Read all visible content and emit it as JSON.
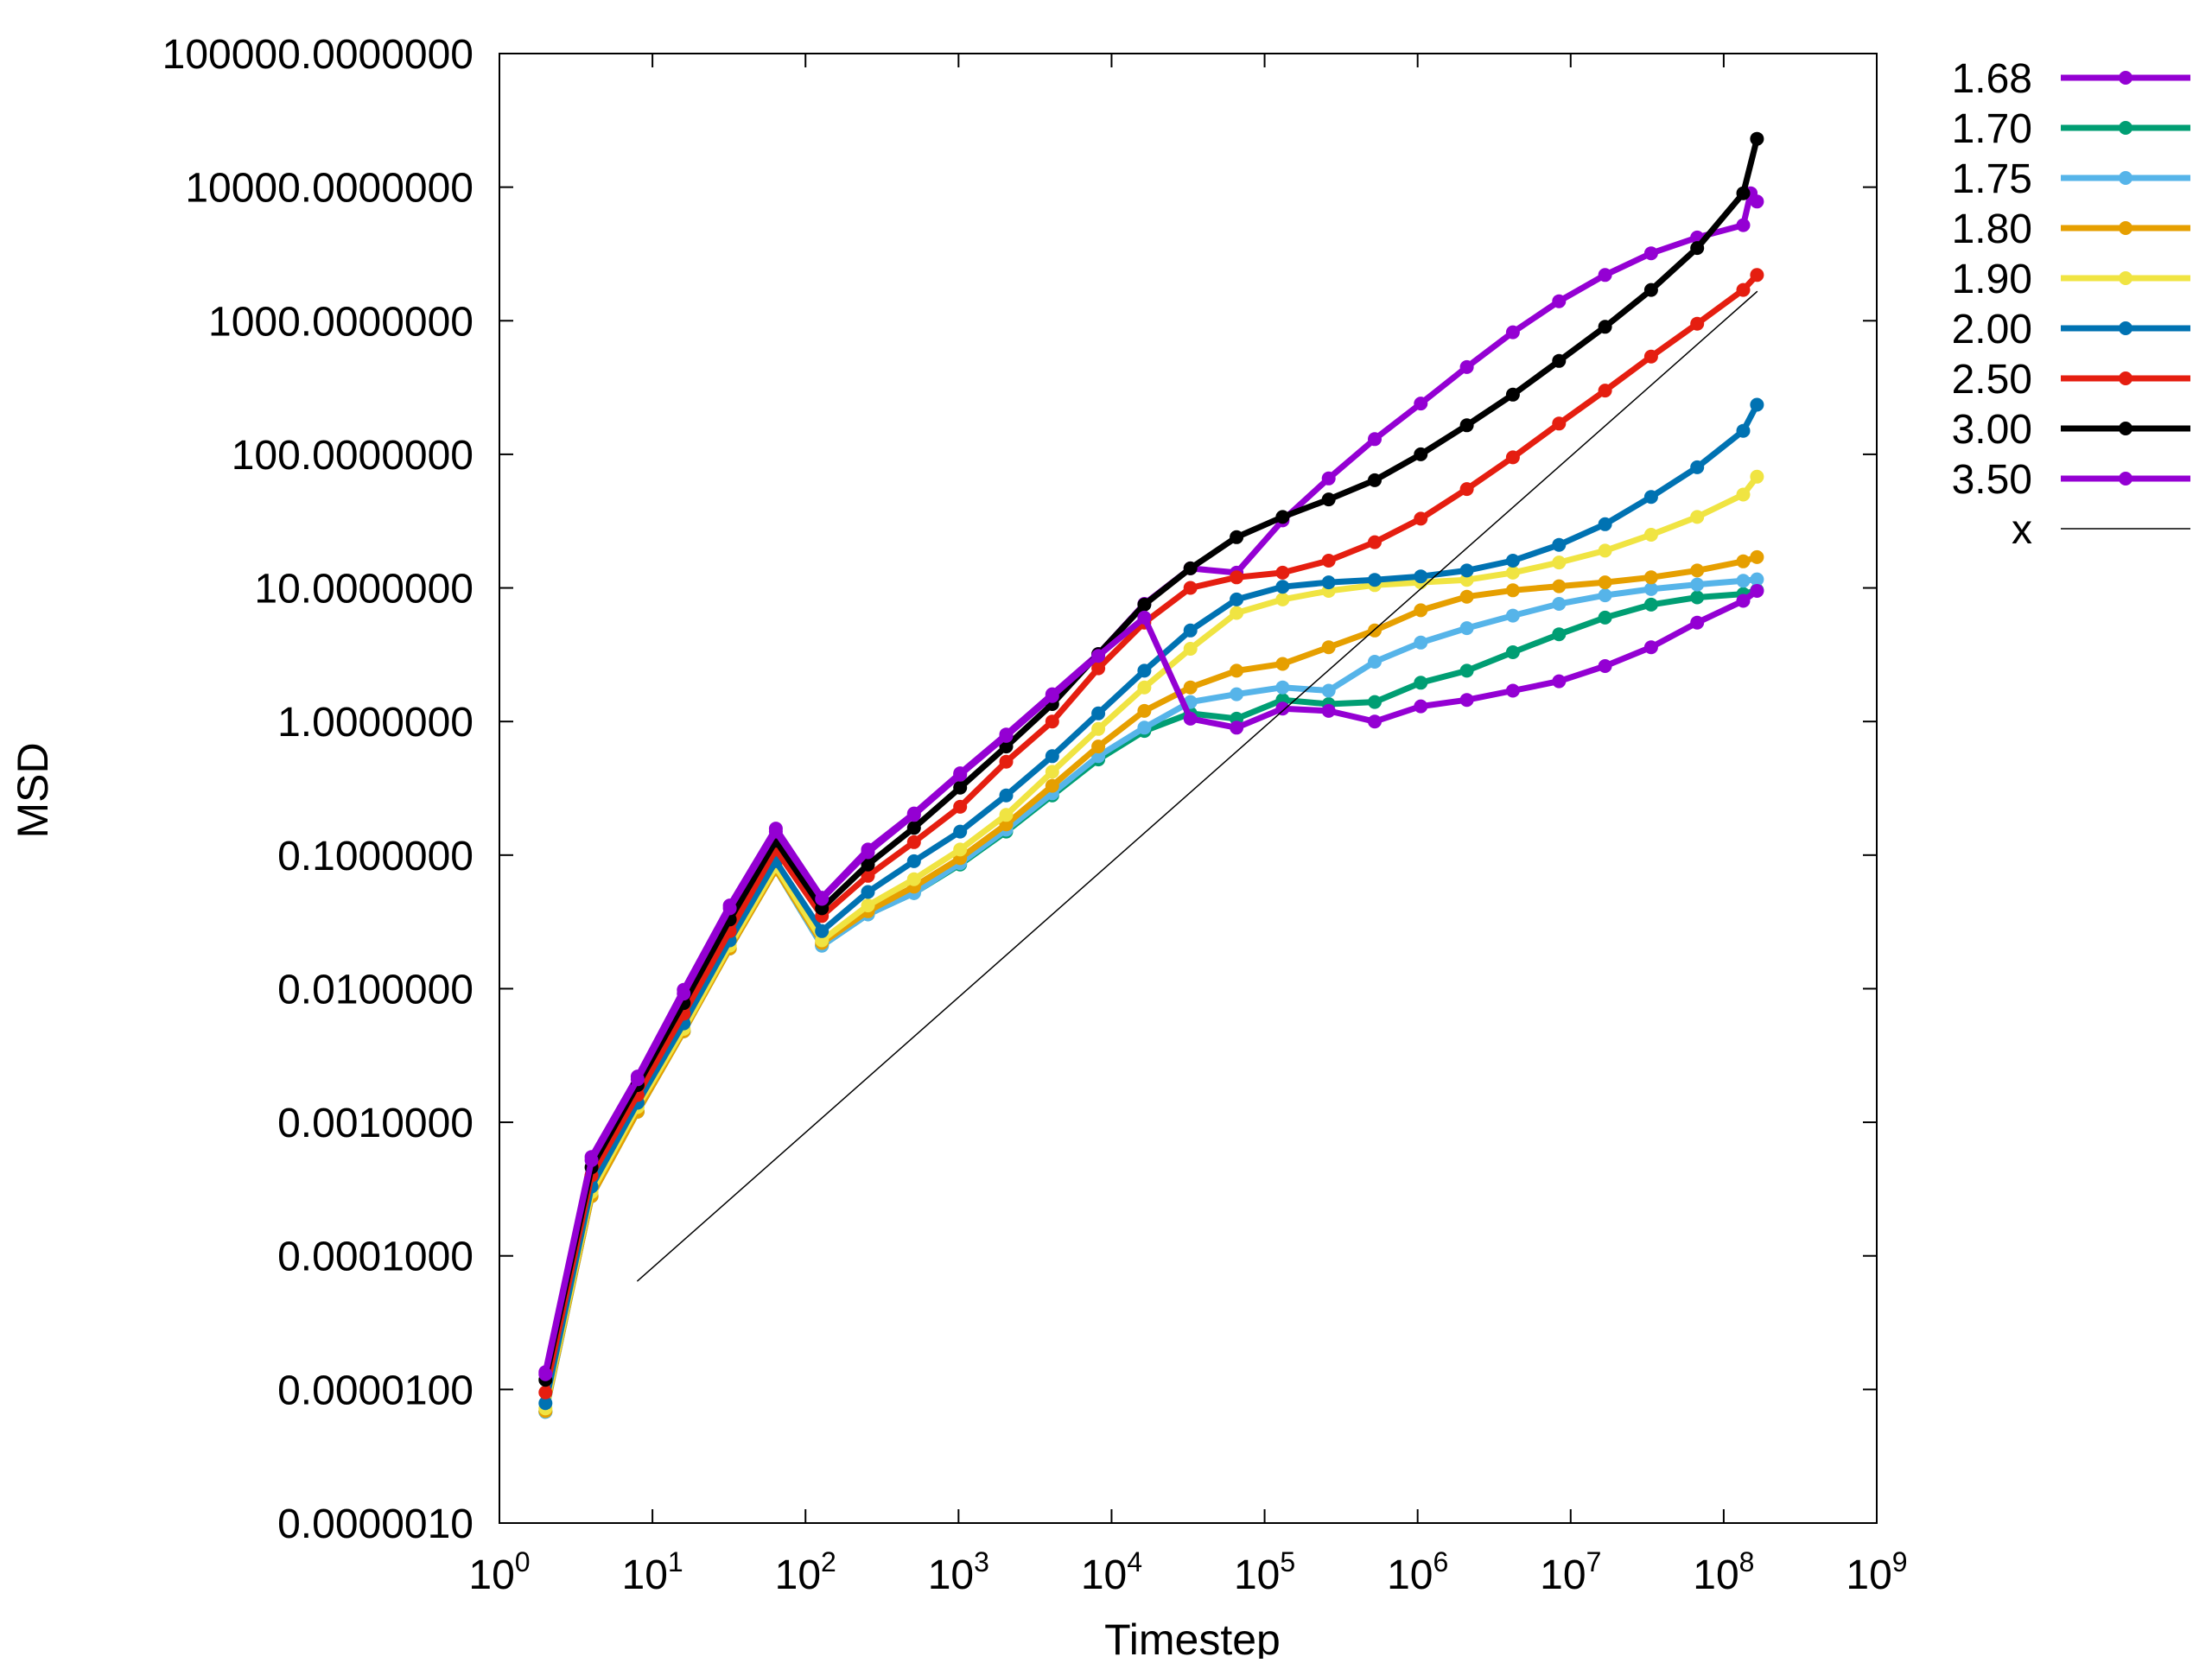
{
  "chart_data": {
    "type": "line",
    "xlabel": "Timestep",
    "ylabel": "MSD",
    "x_scale": "log",
    "y_scale": "log",
    "xlim": [
      1,
      1000000000
    ],
    "ylim": [
      1e-06,
      100000
    ],
    "grid": false,
    "legend_position": "outside-right",
    "x_tick_labels": [
      {
        "base": "10",
        "exp": "0"
      },
      {
        "base": "10",
        "exp": "1"
      },
      {
        "base": "10",
        "exp": "2"
      },
      {
        "base": "10",
        "exp": "3"
      },
      {
        "base": "10",
        "exp": "4"
      },
      {
        "base": "10",
        "exp": "5"
      },
      {
        "base": "10",
        "exp": "6"
      },
      {
        "base": "10",
        "exp": "7"
      },
      {
        "base": "10",
        "exp": "8"
      },
      {
        "base": "10",
        "exp": "9"
      }
    ],
    "y_tick_labels": [
      "0.0000010",
      "0.0000100",
      "0.0001000",
      "0.0010000",
      "0.0100000",
      "0.1000000",
      "1.0000000",
      "10.0000000",
      "100.0000000",
      "1000.0000000",
      "10000.0000000",
      "100000.0000000"
    ],
    "series": [
      {
        "name": "1.68",
        "color": "#9400d3",
        "points": [
          [
            2,
            1.35e-05
          ],
          [
            4,
            0.00055
          ],
          [
            8,
            0.0022
          ],
          [
            16,
            0.0098
          ],
          [
            32,
            0.042
          ],
          [
            64,
            0.158
          ],
          [
            128,
            0.048
          ],
          [
            256,
            0.11
          ],
          [
            512,
            0.205
          ],
          [
            1024,
            0.41
          ],
          [
            2048,
            0.8
          ],
          [
            4096,
            1.6
          ],
          [
            8192,
            3.2
          ],
          [
            16384,
            7.6
          ],
          [
            32768,
            14
          ],
          [
            65536,
            13
          ],
          [
            131072,
            32
          ],
          [
            262144,
            66
          ],
          [
            524288,
            130
          ],
          [
            1048576,
            240
          ],
          [
            2097152,
            450
          ],
          [
            4194304,
            820
          ],
          [
            8388608,
            1400
          ],
          [
            16777216,
            2200
          ],
          [
            33554432,
            3200
          ],
          [
            67108864,
            4200
          ],
          [
            134217728,
            5200
          ],
          [
            150000000,
            9000
          ],
          [
            165000000,
            7800
          ]
        ]
      },
      {
        "name": "1.70",
        "color": "#009e73",
        "points": [
          [
            2,
            6.8e-06
          ],
          [
            4,
            0.00028
          ],
          [
            8,
            0.0012
          ],
          [
            16,
            0.0048
          ],
          [
            32,
            0.02
          ],
          [
            64,
            0.078
          ],
          [
            128,
            0.021
          ],
          [
            256,
            0.036
          ],
          [
            512,
            0.052
          ],
          [
            1024,
            0.085
          ],
          [
            2048,
            0.15
          ],
          [
            4096,
            0.28
          ],
          [
            8192,
            0.52
          ],
          [
            16384,
            0.85
          ],
          [
            32768,
            1.15
          ],
          [
            65536,
            1.05
          ],
          [
            131072,
            1.45
          ],
          [
            262144,
            1.35
          ],
          [
            524288,
            1.4
          ],
          [
            1048576,
            1.95
          ],
          [
            2097152,
            2.4
          ],
          [
            4194304,
            3.3
          ],
          [
            8388608,
            4.5
          ],
          [
            16777216,
            6
          ],
          [
            33554432,
            7.5
          ],
          [
            67108864,
            8.5
          ],
          [
            134217728,
            9
          ],
          [
            165000000,
            9.6
          ]
        ]
      },
      {
        "name": "1.75",
        "color": "#56b4e9",
        "points": [
          [
            2,
            6.8e-06
          ],
          [
            4,
            0.00028
          ],
          [
            8,
            0.0012
          ],
          [
            16,
            0.0048
          ],
          [
            32,
            0.02
          ],
          [
            64,
            0.078
          ],
          [
            128,
            0.021
          ],
          [
            256,
            0.036
          ],
          [
            512,
            0.052
          ],
          [
            1024,
            0.087
          ],
          [
            2048,
            0.155
          ],
          [
            4096,
            0.29
          ],
          [
            8192,
            0.55
          ],
          [
            16384,
            0.9
          ],
          [
            32768,
            1.4
          ],
          [
            65536,
            1.6
          ],
          [
            131072,
            1.8
          ],
          [
            262144,
            1.7
          ],
          [
            524288,
            2.8
          ],
          [
            1048576,
            3.9
          ],
          [
            2097152,
            5
          ],
          [
            4194304,
            6.2
          ],
          [
            8388608,
            7.6
          ],
          [
            16777216,
            8.8
          ],
          [
            33554432,
            9.8
          ],
          [
            67108864,
            10.6
          ],
          [
            134217728,
            11.3
          ],
          [
            165000000,
            11.6
          ]
        ]
      },
      {
        "name": "1.80",
        "color": "#e69f00",
        "points": [
          [
            2,
            6.9e-06
          ],
          [
            4,
            0.00028
          ],
          [
            8,
            0.0012
          ],
          [
            16,
            0.0048
          ],
          [
            32,
            0.02
          ],
          [
            64,
            0.078
          ],
          [
            128,
            0.022
          ],
          [
            256,
            0.038
          ],
          [
            512,
            0.058
          ],
          [
            1024,
            0.095
          ],
          [
            2048,
            0.17
          ],
          [
            4096,
            0.33
          ],
          [
            8192,
            0.65
          ],
          [
            16384,
            1.2
          ],
          [
            32768,
            1.8
          ],
          [
            65536,
            2.4
          ],
          [
            131072,
            2.7
          ],
          [
            262144,
            3.6
          ],
          [
            524288,
            4.8
          ],
          [
            1048576,
            6.8
          ],
          [
            2097152,
            8.6
          ],
          [
            4194304,
            9.6
          ],
          [
            8388608,
            10.3
          ],
          [
            16777216,
            11
          ],
          [
            33554432,
            12
          ],
          [
            67108864,
            13.5
          ],
          [
            134217728,
            15.8
          ],
          [
            165000000,
            17
          ]
        ]
      },
      {
        "name": "1.90",
        "color": "#f0e442",
        "points": [
          [
            2,
            7.2e-06
          ],
          [
            4,
            0.0003
          ],
          [
            8,
            0.0013
          ],
          [
            16,
            0.005
          ],
          [
            32,
            0.021
          ],
          [
            64,
            0.082
          ],
          [
            128,
            0.023
          ],
          [
            256,
            0.042
          ],
          [
            512,
            0.066
          ],
          [
            1024,
            0.11
          ],
          [
            2048,
            0.2
          ],
          [
            4096,
            0.42
          ],
          [
            8192,
            0.88
          ],
          [
            16384,
            1.8
          ],
          [
            32768,
            3.5
          ],
          [
            65536,
            6.5
          ],
          [
            131072,
            8.2
          ],
          [
            262144,
            9.5
          ],
          [
            524288,
            10.5
          ],
          [
            1048576,
            11
          ],
          [
            2097152,
            11.5
          ],
          [
            4194304,
            13
          ],
          [
            8388608,
            15.5
          ],
          [
            16777216,
            19
          ],
          [
            33554432,
            25
          ],
          [
            67108864,
            34
          ],
          [
            134217728,
            50
          ],
          [
            165000000,
            68
          ]
        ]
      },
      {
        "name": "2.00",
        "color": "#0072b2",
        "points": [
          [
            2,
            7.9e-06
          ],
          [
            4,
            0.00033
          ],
          [
            8,
            0.0014
          ],
          [
            16,
            0.0055
          ],
          [
            32,
            0.023
          ],
          [
            64,
            0.09
          ],
          [
            128,
            0.027
          ],
          [
            256,
            0.053
          ],
          [
            512,
            0.09
          ],
          [
            1024,
            0.15
          ],
          [
            2048,
            0.28
          ],
          [
            4096,
            0.55
          ],
          [
            8192,
            1.15
          ],
          [
            16384,
            2.4
          ],
          [
            32768,
            4.8
          ],
          [
            65536,
            8.2
          ],
          [
            131072,
            10.2
          ],
          [
            262144,
            11
          ],
          [
            524288,
            11.5
          ],
          [
            1048576,
            12.2
          ],
          [
            2097152,
            13.5
          ],
          [
            4194304,
            16
          ],
          [
            8388608,
            21
          ],
          [
            16777216,
            30
          ],
          [
            33554432,
            48
          ],
          [
            67108864,
            80
          ],
          [
            134217728,
            150
          ],
          [
            165000000,
            235
          ]
        ]
      },
      {
        "name": "2.50",
        "color": "#e51e10",
        "points": [
          [
            2,
            9.5e-06
          ],
          [
            4,
            0.0004
          ],
          [
            8,
            0.0016
          ],
          [
            16,
            0.0065
          ],
          [
            32,
            0.027
          ],
          [
            64,
            0.11
          ],
          [
            128,
            0.035
          ],
          [
            256,
            0.07
          ],
          [
            512,
            0.125
          ],
          [
            1024,
            0.23
          ],
          [
            2048,
            0.5
          ],
          [
            4096,
            1
          ],
          [
            8192,
            2.5
          ],
          [
            16384,
            5.5
          ],
          [
            32768,
            10
          ],
          [
            65536,
            12
          ],
          [
            131072,
            13
          ],
          [
            262144,
            16
          ],
          [
            524288,
            22
          ],
          [
            1048576,
            33
          ],
          [
            2097152,
            55
          ],
          [
            4194304,
            95
          ],
          [
            8388608,
            170
          ],
          [
            16777216,
            300
          ],
          [
            33554432,
            540
          ],
          [
            67108864,
            950
          ],
          [
            134217728,
            1700
          ],
          [
            165000000,
            2200
          ]
        ]
      },
      {
        "name": "3.00",
        "color": "#000000",
        "points": [
          [
            2,
            1.18e-05
          ],
          [
            4,
            0.00046
          ],
          [
            8,
            0.0019
          ],
          [
            16,
            0.0078
          ],
          [
            32,
            0.033
          ],
          [
            64,
            0.128
          ],
          [
            128,
            0.04
          ],
          [
            256,
            0.085
          ],
          [
            512,
            0.16
          ],
          [
            1024,
            0.32
          ],
          [
            2048,
            0.65
          ],
          [
            4096,
            1.35
          ],
          [
            8192,
            3.2
          ],
          [
            16384,
            7.5
          ],
          [
            32768,
            14
          ],
          [
            65536,
            24
          ],
          [
            131072,
            34
          ],
          [
            262144,
            46
          ],
          [
            524288,
            64
          ],
          [
            1048576,
            100
          ],
          [
            2097152,
            165
          ],
          [
            4194304,
            280
          ],
          [
            8388608,
            500
          ],
          [
            16777216,
            900
          ],
          [
            33554432,
            1700
          ],
          [
            67108864,
            3500
          ],
          [
            134217728,
            9000
          ],
          [
            165000000,
            23000
          ]
        ]
      },
      {
        "name": "3.50",
        "color": "#9400d3",
        "points": [
          [
            2,
            1.3e-05
          ],
          [
            4,
            0.00052
          ],
          [
            8,
            0.0021
          ],
          [
            16,
            0.0092
          ],
          [
            32,
            0.04
          ],
          [
            64,
            0.15
          ],
          [
            128,
            0.047
          ],
          [
            256,
            0.105
          ],
          [
            512,
            0.2
          ],
          [
            1024,
            0.4
          ],
          [
            2048,
            0.78
          ],
          [
            4096,
            1.55
          ],
          [
            8192,
            3.1
          ],
          [
            16384,
            6
          ],
          [
            32768,
            1.05
          ],
          [
            65536,
            0.9
          ],
          [
            131072,
            1.25
          ],
          [
            262144,
            1.2
          ],
          [
            524288,
            1
          ],
          [
            1048576,
            1.3
          ],
          [
            2097152,
            1.45
          ],
          [
            4194304,
            1.7
          ],
          [
            8388608,
            2
          ],
          [
            16777216,
            2.6
          ],
          [
            33554432,
            3.6
          ],
          [
            67108864,
            5.5
          ],
          [
            134217728,
            8
          ],
          [
            165000000,
            9.5
          ]
        ]
      },
      {
        "name": "x",
        "color": "#000000",
        "points": [
          [
            8,
            6.5e-05
          ],
          [
            165000000,
            1650
          ]
        ]
      }
    ]
  }
}
